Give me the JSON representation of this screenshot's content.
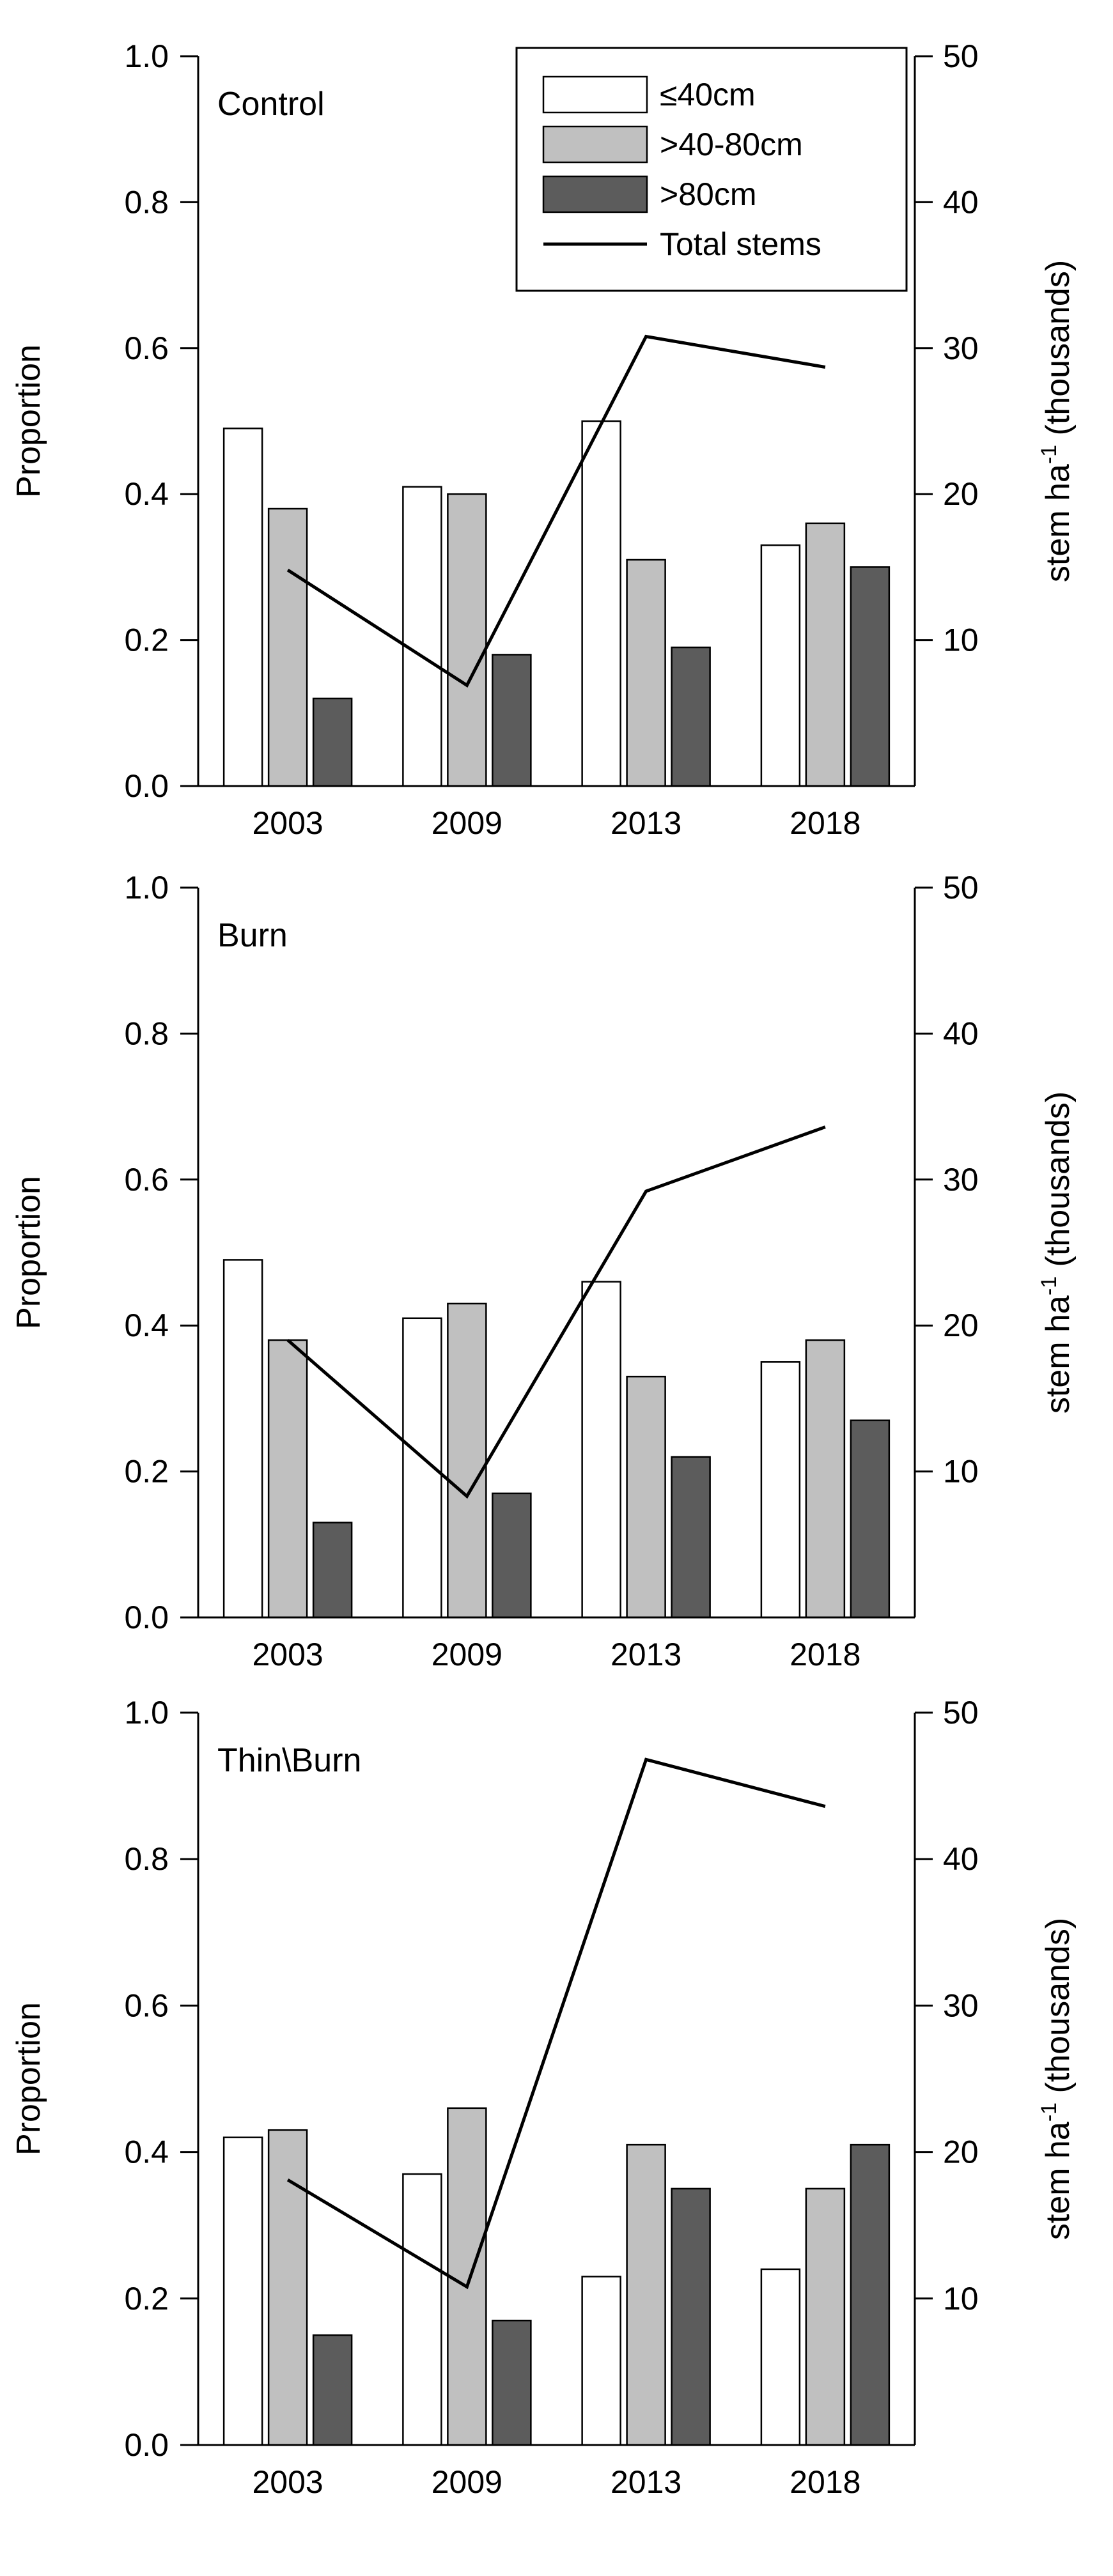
{
  "colors": {
    "small": "#ffffff",
    "medium": "#c0c0c0",
    "large": "#5c5c5c",
    "outline": "#000000",
    "line": "#000000"
  },
  "legend": {
    "entries": [
      {
        "key": "small",
        "label": "≤40cm"
      },
      {
        "key": "medium",
        "label": ">40-80cm"
      },
      {
        "key": "large",
        "label": ">80cm"
      },
      {
        "key": "total",
        "label": "Total stems"
      }
    ]
  },
  "chart_data": [
    {
      "type": "bar",
      "title": "Control",
      "categories": [
        "2003",
        "2009",
        "2013",
        "2018"
      ],
      "ylabel": "Proportion",
      "ylabel2": "stem ha",
      "ylabel2_exp": "-1",
      "ylabel2_suffix": " (thousands)",
      "ylim": [
        0,
        1.0
      ],
      "y_ticks": [
        "0.0",
        "0.2",
        "0.4",
        "0.6",
        "0.8",
        "1.0"
      ],
      "y2lim": [
        0,
        50
      ],
      "y2_ticks": [
        "10",
        "20",
        "30",
        "40",
        "50"
      ],
      "series": [
        {
          "name": "≤40cm",
          "key": "small",
          "values": [
            0.49,
            0.41,
            0.5,
            0.33
          ]
        },
        {
          "name": ">40-80cm",
          "key": "medium",
          "values": [
            0.38,
            0.4,
            0.31,
            0.36
          ]
        },
        {
          "name": ">80cm",
          "key": "large",
          "values": [
            0.12,
            0.18,
            0.19,
            0.3
          ]
        }
      ],
      "line": {
        "name": "Total stems",
        "axis": "right",
        "values": [
          14.8,
          6.9,
          30.8,
          28.7
        ]
      }
    },
    {
      "type": "bar",
      "title": "Burn",
      "categories": [
        "2003",
        "2009",
        "2013",
        "2018"
      ],
      "ylabel": "Proportion",
      "ylabel2": "stem ha",
      "ylabel2_exp": "-1",
      "ylabel2_suffix": " (thousands)",
      "ylim": [
        0,
        1.0
      ],
      "y_ticks": [
        "0.0",
        "0.2",
        "0.4",
        "0.6",
        "0.8",
        "1.0"
      ],
      "y2lim": [
        0,
        50
      ],
      "y2_ticks": [
        "10",
        "20",
        "30",
        "40",
        "50"
      ],
      "series": [
        {
          "name": "≤40cm",
          "key": "small",
          "values": [
            0.49,
            0.41,
            0.46,
            0.35
          ]
        },
        {
          "name": ">40-80cm",
          "key": "medium",
          "values": [
            0.38,
            0.43,
            0.33,
            0.38
          ]
        },
        {
          "name": ">80cm",
          "key": "large",
          "values": [
            0.13,
            0.17,
            0.22,
            0.27
          ]
        }
      ],
      "line": {
        "name": "Total stems",
        "axis": "right",
        "values": [
          19.0,
          8.3,
          29.2,
          33.6
        ]
      }
    },
    {
      "type": "bar",
      "title": "Thin\\Burn",
      "categories": [
        "2003",
        "2009",
        "2013",
        "2018"
      ],
      "ylabel": "Proportion",
      "ylabel2": "stem ha",
      "ylabel2_exp": "-1",
      "ylabel2_suffix": " (thousands)",
      "ylim": [
        0,
        1.0
      ],
      "y_ticks": [
        "0.0",
        "0.2",
        "0.4",
        "0.6",
        "0.8",
        "1.0"
      ],
      "y2lim": [
        0,
        50
      ],
      "y2_ticks": [
        "10",
        "20",
        "30",
        "40",
        "50"
      ],
      "series": [
        {
          "name": "≤40cm",
          "key": "small",
          "values": [
            0.42,
            0.37,
            0.23,
            0.24
          ]
        },
        {
          "name": ">40-80cm",
          "key": "medium",
          "values": [
            0.43,
            0.46,
            0.41,
            0.35
          ]
        },
        {
          "name": ">80cm",
          "key": "large",
          "values": [
            0.15,
            0.17,
            0.35,
            0.41
          ]
        }
      ],
      "line": {
        "name": "Total stems",
        "axis": "right",
        "values": [
          18.1,
          10.8,
          46.8,
          43.6
        ]
      }
    }
  ]
}
